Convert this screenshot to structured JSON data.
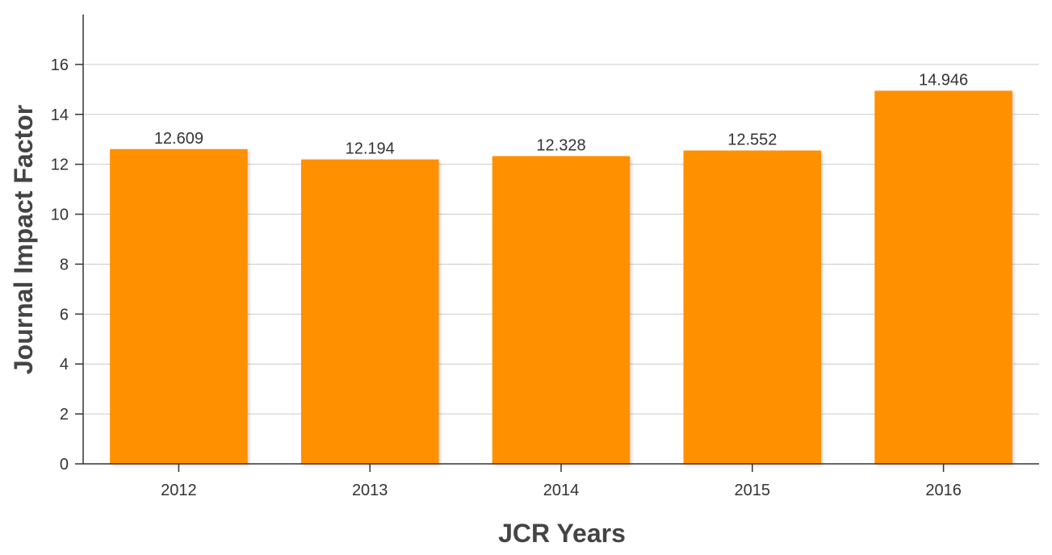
{
  "chart_data": {
    "type": "bar",
    "categories": [
      "2012",
      "2013",
      "2014",
      "2015",
      "2016"
    ],
    "values": [
      12.609,
      12.194,
      12.328,
      12.552,
      14.946
    ],
    "data_labels": [
      "12.609",
      "12.194",
      "12.328",
      "12.552",
      "14.946"
    ],
    "xlabel": "JCR Years",
    "ylabel": "Journal Impact Factor",
    "ylim": [
      0,
      18
    ],
    "yticks": [
      0,
      2,
      4,
      6,
      8,
      10,
      12,
      14,
      16
    ],
    "grid": true,
    "bar_color": "#ff9000"
  }
}
